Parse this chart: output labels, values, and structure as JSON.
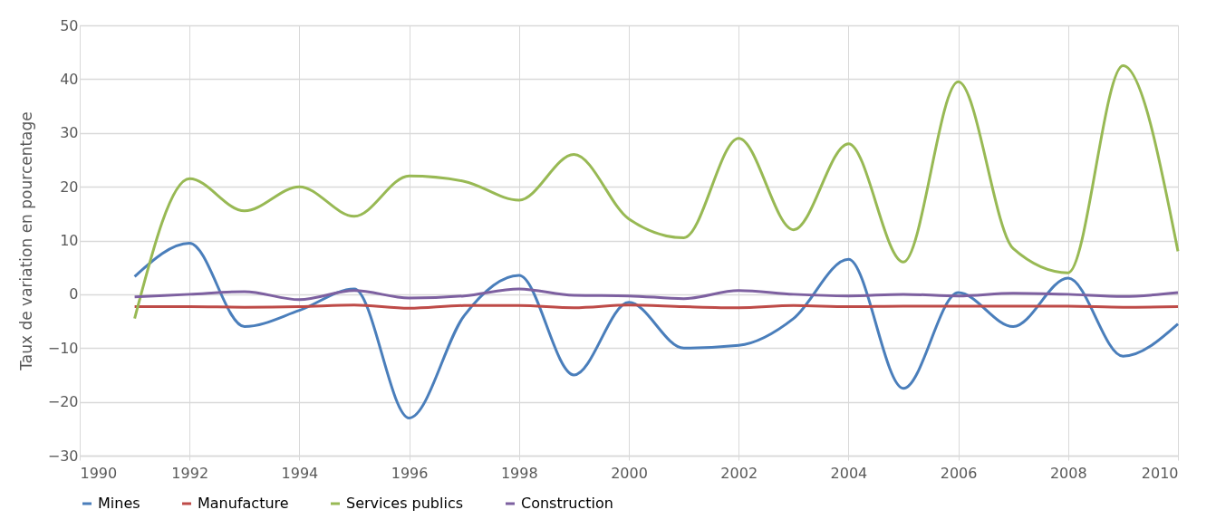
{
  "chart_data": {
    "type": "line",
    "ylabel": "Taux de variation en pourcentage",
    "x": [
      1991,
      1992,
      1993,
      1994,
      1995,
      1996,
      1997,
      1998,
      1999,
      2000,
      2001,
      2002,
      2003,
      2004,
      2005,
      2006,
      2007,
      2008,
      2009,
      2010
    ],
    "series": [
      {
        "name": "Mines",
        "color": "#4a7ebb",
        "values": [
          3.3,
          9.5,
          -6,
          -3,
          1,
          -23,
          -4,
          3.5,
          -15,
          -1.5,
          -10,
          -9.5,
          -4.5,
          6.5,
          -17.5,
          0.3,
          -6,
          3,
          -11.5,
          -5.5
        ]
      },
      {
        "name": "Manufacture",
        "color": "#be4b48",
        "values": [
          -2.3,
          -2.3,
          -2.4,
          -2.3,
          -2,
          -2.6,
          -2.1,
          -2.1,
          -2.5,
          -2,
          -2.3,
          -2.5,
          -2.1,
          -2.3,
          -2.2,
          -2.2,
          -2.2,
          -2.2,
          -2.4,
          -2.3
        ]
      },
      {
        "name": "Services publics",
        "color": "#98b954",
        "values": [
          -4.5,
          21.5,
          15.5,
          20,
          14.5,
          22,
          21,
          17.5,
          26,
          14,
          10.5,
          29,
          12,
          28,
          6,
          39.5,
          8.5,
          4,
          42.5,
          8
        ]
      },
      {
        "name": "Construction",
        "color": "#7d60a0",
        "values": [
          -0.5,
          0,
          0.5,
          -1,
          0.7,
          -0.7,
          -0.3,
          1,
          -0.2,
          -0.3,
          -0.8,
          0.7,
          0,
          -0.3,
          0,
          -0.3,
          0.2,
          0,
          -0.4,
          0.3
        ]
      }
    ],
    "xlim": [
      1990,
      2010
    ],
    "xticks": [
      1990,
      1992,
      1994,
      1996,
      1998,
      2000,
      2002,
      2004,
      2006,
      2008,
      2010
    ],
    "ylim": [
      -30,
      50
    ],
    "yticks": [
      -30,
      -20,
      -10,
      0,
      10,
      20,
      30,
      40,
      50
    ],
    "grid": true,
    "legend": "bottom",
    "marker": "none",
    "line_style": "solid"
  }
}
